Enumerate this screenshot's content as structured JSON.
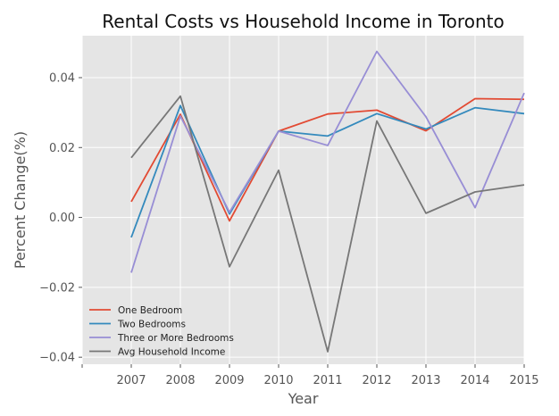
{
  "chart_data": {
    "type": "line",
    "title": "Rental Costs vs Household Income in Toronto",
    "xlabel": "Year",
    "ylabel": "Percent Change(%)",
    "x": [
      2007,
      2008,
      2009,
      2010,
      2011,
      2012,
      2013,
      2014,
      2015
    ],
    "xlim": [
      2006,
      2015
    ],
    "ylim": [
      -0.042,
      0.052
    ],
    "xticks": [
      2007,
      2008,
      2009,
      2010,
      2011,
      2012,
      2013,
      2014,
      2015
    ],
    "yticks": [
      -0.04,
      -0.02,
      0.0,
      0.02,
      0.04
    ],
    "ytick_labels": [
      "−0.04",
      "−0.02",
      "0.00",
      "0.02",
      "0.04"
    ],
    "grid": true,
    "legend_position": "lower-left",
    "series": [
      {
        "name": "One Bedroom",
        "color": "#E24A33",
        "values": [
          0.0045,
          0.0295,
          -0.001,
          0.0247,
          0.0296,
          0.0307,
          0.0248,
          0.034,
          0.0338
        ]
      },
      {
        "name": "Two Bedrooms",
        "color": "#348ABD",
        "values": [
          -0.0057,
          0.032,
          0.001,
          0.0247,
          0.0233,
          0.0297,
          0.0253,
          0.0314,
          0.0297
        ]
      },
      {
        "name": "Three or More Bedrooms",
        "color": "#988ED5",
        "values": [
          -0.0158,
          0.029,
          0.0015,
          0.0247,
          0.0206,
          0.0475,
          0.0288,
          0.0028,
          0.0356
        ]
      },
      {
        "name": "Avg Household Income",
        "color": "#777777",
        "values": [
          0.0171,
          0.0347,
          -0.0141,
          0.0135,
          -0.0384,
          0.0276,
          0.0012,
          0.0073,
          0.0093
        ]
      }
    ]
  }
}
